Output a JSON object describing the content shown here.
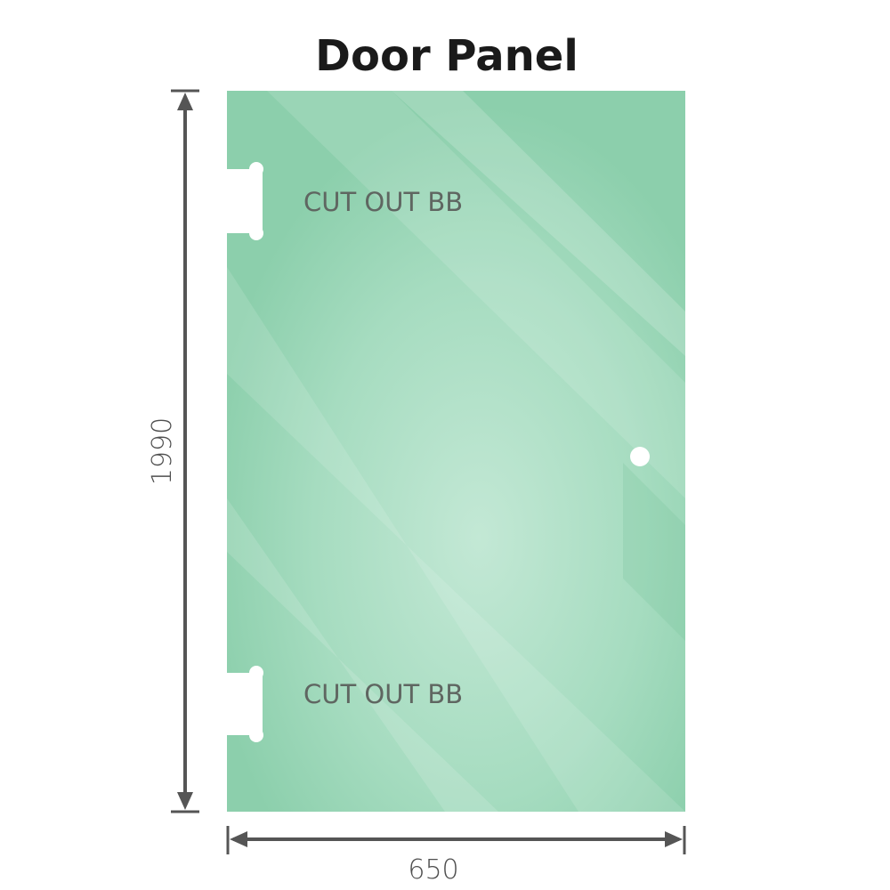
{
  "title": "Door Panel",
  "cutouts": [
    {
      "label": "CUT OUT BB"
    },
    {
      "label": "CUT OUT BB"
    }
  ],
  "dimensions": {
    "height": "1990",
    "width": "650"
  },
  "colors": {
    "glass": "#8dd0ad",
    "glass_highlight": "#c0e6d3",
    "dimension_line": "#555555"
  }
}
